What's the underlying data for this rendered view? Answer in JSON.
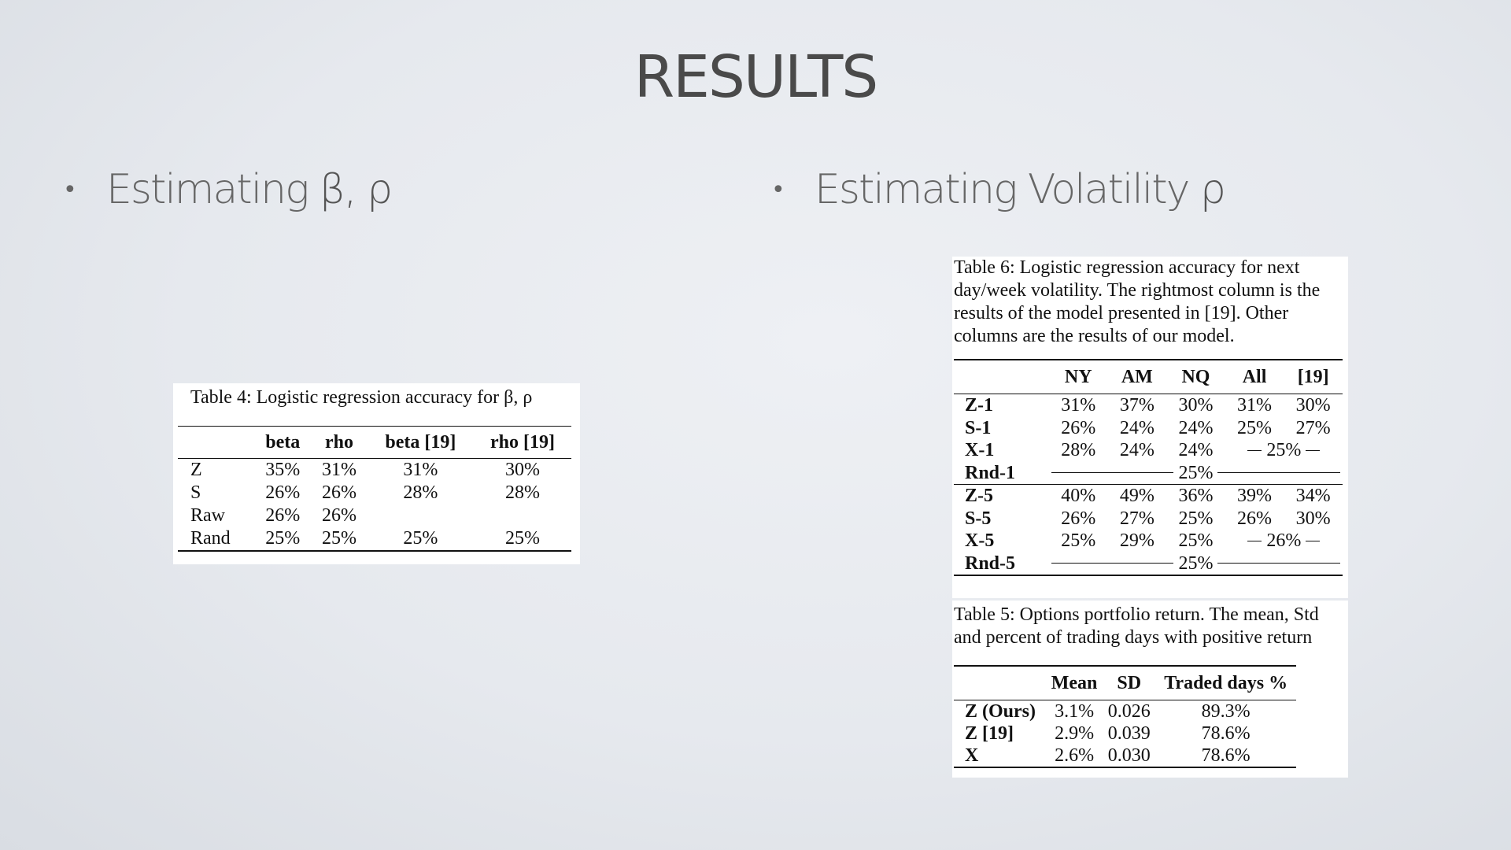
{
  "slide": {
    "title": "RESULTS",
    "bullet_left": "Estimating",
    "bullet_left_symbols": "β, ρ",
    "bullet_right": "Estimating Volatility",
    "bullet_right_symbol": "ρ",
    "bullet_glyph": "•"
  },
  "table4": {
    "caption": "Table 4: Logistic regression accuracy for β, ρ",
    "headers": [
      "",
      "beta",
      "rho",
      "beta [19]",
      "rho [19]"
    ],
    "rows": [
      [
        "Z",
        "35%",
        "31%",
        "31%",
        "30%"
      ],
      [
        "S",
        "26%",
        "26%",
        "28%",
        "28%"
      ],
      [
        "Raw",
        "26%",
        "26%",
        "",
        ""
      ],
      [
        "Rand",
        "25%",
        "25%",
        "25%",
        "25%"
      ]
    ]
  },
  "table6": {
    "caption": "Table 6: Logistic regression accuracy for next day/week volatility.  The rightmost column is the results of the model presented in [19]. Other columns are the results of our model.",
    "headers": [
      "",
      "NY",
      "AM",
      "NQ",
      "All",
      "[19]"
    ],
    "group1": [
      [
        "Z-1",
        "31%",
        "37%",
        "30%",
        "31%",
        "30%"
      ],
      [
        "S-1",
        "26%",
        "24%",
        "24%",
        "25%",
        "27%"
      ]
    ],
    "x1": {
      "label": "X-1",
      "values": [
        "28%",
        "24%",
        "24%"
      ],
      "span": "25%"
    },
    "rnd1": {
      "label": "Rnd-1",
      "span": "25%"
    },
    "group5": [
      [
        "Z-5",
        "40%",
        "49%",
        "36%",
        "39%",
        "34%"
      ],
      [
        "S-5",
        "26%",
        "27%",
        "25%",
        "26%",
        "30%"
      ]
    ],
    "x5": {
      "label": "X-5",
      "values": [
        "25%",
        "29%",
        "25%"
      ],
      "span": "26%"
    },
    "rnd5": {
      "label": "Rnd-5",
      "span": "25%"
    }
  },
  "table5": {
    "caption": "Table 5: Options portfolio return. The mean, Std and percent of trading days with positive return",
    "headers": [
      "",
      "Mean",
      "SD",
      "Traded days %"
    ],
    "rows": [
      [
        "Z (Ours)",
        "3.1%",
        "0.026",
        "89.3%"
      ],
      [
        "Z [19]",
        "2.9%",
        "0.039",
        "78.6%"
      ],
      [
        "X",
        "2.6%",
        "0.030",
        "78.6%"
      ]
    ]
  }
}
